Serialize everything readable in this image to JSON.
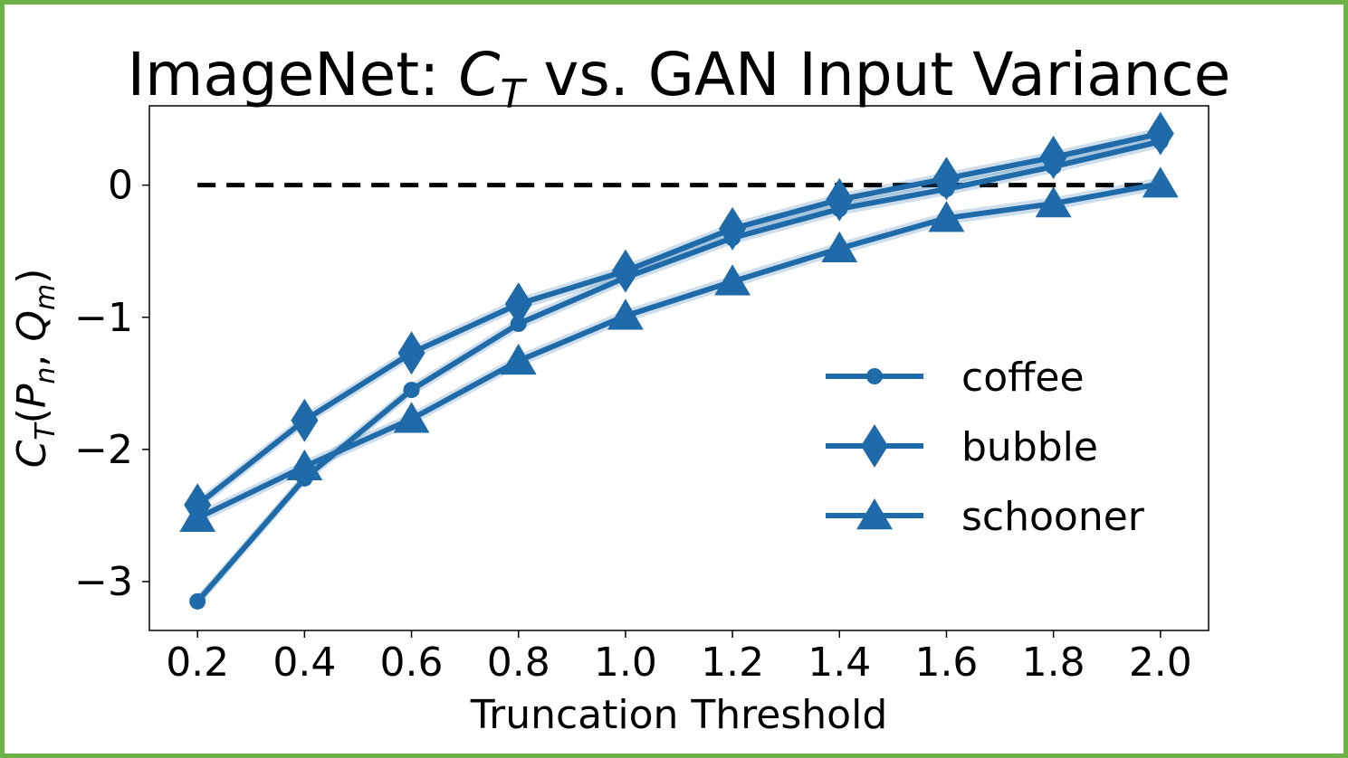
{
  "chart_data": {
    "type": "line",
    "title": {
      "prefix": "ImageNet: ",
      "symbol": "C",
      "symbol_sub": "T",
      "suffix": " vs. GAN Input Variance"
    },
    "xlabel": "Truncation Threshold",
    "ylabel": {
      "symbol": "C",
      "symbol_sub": "T",
      "open": "(",
      "arg1": "P",
      "arg1_sub": "n",
      "sep": ", ",
      "arg2": "Q",
      "arg2_sub": "m",
      "close": ")"
    },
    "x": [
      0.2,
      0.4,
      0.6,
      0.8,
      1.0,
      1.2,
      1.4,
      1.6,
      1.8,
      2.0
    ],
    "x_tick_labels": [
      "0.2",
      "0.4",
      "0.6",
      "0.8",
      "1.0",
      "1.2",
      "1.4",
      "1.6",
      "1.8",
      "2.0"
    ],
    "y_ticks": [
      0,
      -1,
      -2,
      -3
    ],
    "y_tick_labels": [
      "0",
      "−1",
      "−2",
      "−3"
    ],
    "xlim": [
      0.11,
      2.09
    ],
    "ylim": [
      -3.37,
      0.6
    ],
    "grid": false,
    "legend_position": "lower-right",
    "reference_line": {
      "y": 0,
      "style": "dashed",
      "color": "#000000"
    },
    "series": [
      {
        "name": "coffee",
        "marker": "circle",
        "color": "#1f6aa8",
        "values": [
          -3.15,
          -2.22,
          -1.55,
          -1.05,
          -0.7,
          -0.4,
          -0.18,
          -0.03,
          0.14,
          0.33
        ]
      },
      {
        "name": "bubble",
        "marker": "diamond",
        "color": "#1f6aa8",
        "values": [
          -2.42,
          -1.78,
          -1.27,
          -0.9,
          -0.65,
          -0.33,
          -0.11,
          0.05,
          0.21,
          0.39
        ]
      },
      {
        "name": "schooner",
        "marker": "triangle",
        "color": "#1f6aa8",
        "values": [
          -2.52,
          -2.13,
          -1.77,
          -1.33,
          -0.99,
          -0.73,
          -0.48,
          -0.25,
          -0.14,
          0.01
        ]
      }
    ]
  }
}
